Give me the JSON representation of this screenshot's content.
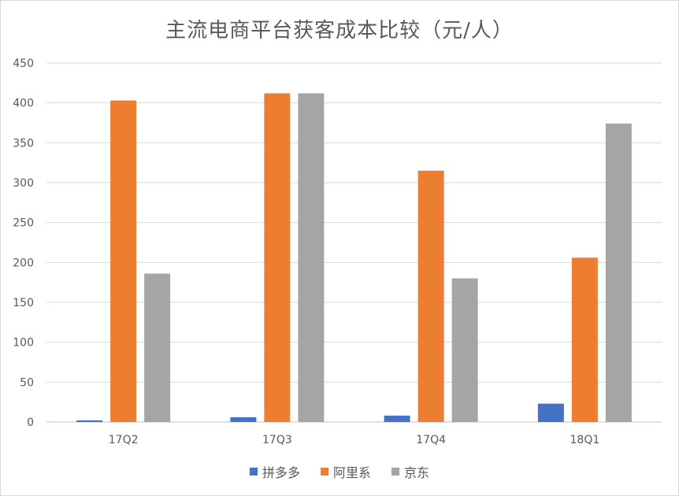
{
  "chart_data": {
    "type": "bar",
    "title": "主流电商平台获客成本比较（元/人）",
    "xlabel": "",
    "ylabel": "",
    "categories": [
      "17Q2",
      "17Q3",
      "17Q4",
      "18Q1"
    ],
    "ylim": [
      0,
      450
    ],
    "yticks": [
      0,
      50,
      100,
      150,
      200,
      250,
      300,
      350,
      400,
      450
    ],
    "grid": true,
    "legend": "bottom",
    "series": [
      {
        "name": "拼多多",
        "color": "#4472C4",
        "values": [
          2,
          6,
          8,
          23
        ]
      },
      {
        "name": "阿里系",
        "color": "#ED7D31",
        "values": [
          403,
          412,
          315,
          206
        ]
      },
      {
        "name": "京东",
        "color": "#A5A5A5",
        "values": [
          186,
          412,
          180,
          374
        ]
      }
    ]
  }
}
